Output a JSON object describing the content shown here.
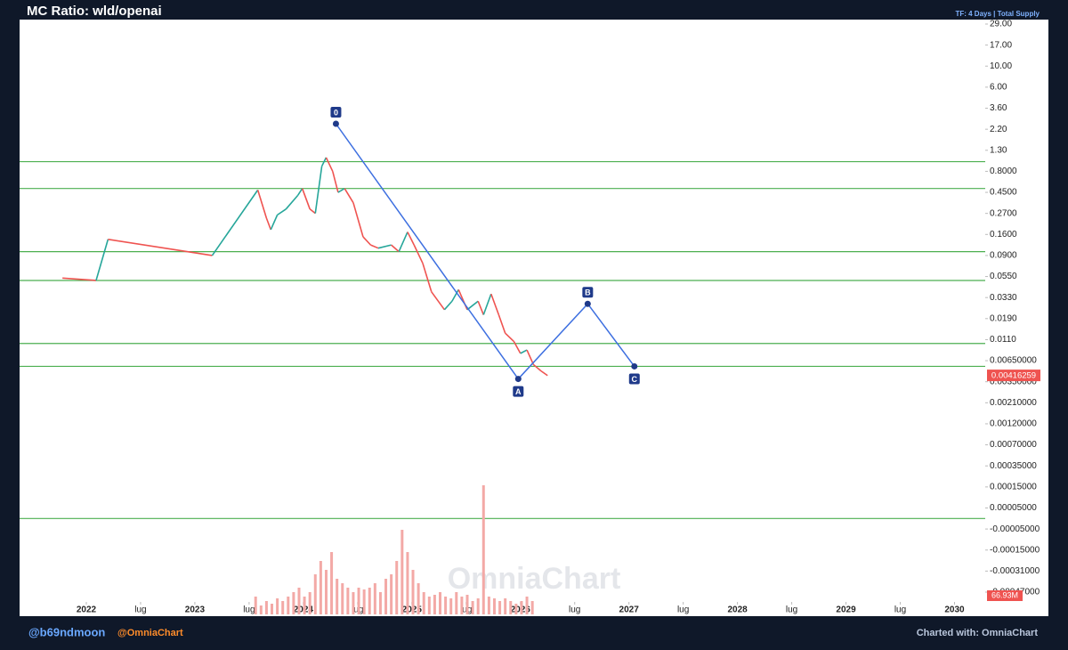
{
  "header": {
    "title": "MC Ratio: wld/openai",
    "settings": "TF: 4 Days | Total Supply"
  },
  "chart_data": {
    "type": "line",
    "x": [
      2021.78,
      2022.09,
      2022.2,
      2023.16,
      2023.58,
      2023.66,
      2023.7,
      2023.76,
      2023.84,
      2023.95,
      2023.99,
      2024.06,
      2024.11,
      2024.17,
      2024.21,
      2024.27,
      2024.32,
      2024.38,
      2024.46,
      2024.55,
      2024.62,
      2024.69,
      2024.81,
      2024.88,
      2024.96,
      2025.02,
      2025.1,
      2025.18,
      2025.3,
      2025.37,
      2025.43,
      2025.51,
      2025.61,
      2025.66,
      2025.73,
      2025.8,
      2025.86,
      2025.94,
      2026.0,
      2026.06,
      2026.12,
      2026.19,
      2026.25
    ],
    "values": [
      0.053,
      0.05,
      0.14,
      0.09,
      0.48,
      0.24,
      0.18,
      0.26,
      0.3,
      0.42,
      0.5,
      0.3,
      0.27,
      0.9,
      1.1,
      0.8,
      0.45,
      0.5,
      0.35,
      0.15,
      0.12,
      0.11,
      0.12,
      0.1,
      0.17,
      0.12,
      0.075,
      0.038,
      0.024,
      0.03,
      0.04,
      0.024,
      0.03,
      0.021,
      0.036,
      0.021,
      0.013,
      0.0105,
      0.0078,
      0.0085,
      0.0058,
      0.0048,
      0.0042
    ],
    "up_color": "#26a69a",
    "down_color": "#ef5350",
    "xlim": [
      2021.385,
      2030.283
    ],
    "xticks": [
      2022,
      {
        "value": 2022.5,
        "label": "lug"
      },
      2023,
      {
        "value": 2023.5,
        "label": "lug"
      },
      2024,
      {
        "value": 2024.5,
        "label": "lug"
      },
      2025,
      {
        "value": 2025.5,
        "label": "lug"
      },
      2026,
      {
        "value": 2026.5,
        "label": "lug"
      },
      2027,
      {
        "value": 2027.5,
        "label": "lug"
      },
      2028,
      {
        "value": 2028.5,
        "label": "lug"
      },
      2029,
      {
        "value": 2029.5,
        "label": "lug"
      },
      2030
    ],
    "ylim": [
      -0.00047,
      29
    ],
    "yticks": [
      {
        "value": 29,
        "label": "29.00"
      },
      {
        "value": 17,
        "label": "17.00"
      },
      {
        "value": 10,
        "label": "10.00"
      },
      {
        "value": 6,
        "label": "6.00"
      },
      {
        "value": 3.6,
        "label": "3.60"
      },
      {
        "value": 2.2,
        "label": "2.20"
      },
      {
        "value": 1.3,
        "label": "1.30"
      },
      {
        "value": 0.8,
        "label": "0.8000"
      },
      {
        "value": 0.45,
        "label": "0.4500"
      },
      {
        "value": 0.27,
        "label": "0.2700"
      },
      {
        "value": 0.16,
        "label": "0.1600"
      },
      {
        "value": 0.09,
        "label": "0.0900"
      },
      {
        "value": 0.055,
        "label": "0.0550"
      },
      {
        "value": 0.033,
        "label": "0.0330"
      },
      {
        "value": 0.019,
        "label": "0.0190"
      },
      {
        "value": 0.011,
        "label": "0.0110"
      },
      {
        "value": 0.0065,
        "label": "0.00650000"
      },
      {
        "value": 0.0035,
        "label": "0.00350000"
      },
      {
        "value": 0.0021,
        "label": "0.00210000"
      },
      {
        "value": 0.0012,
        "label": "0.00120000"
      },
      {
        "value": 0.0007,
        "label": "0.00070000"
      },
      {
        "value": 0.00035,
        "label": "0.00035000"
      },
      {
        "value": 0.00015,
        "label": "0.00015000"
      },
      {
        "value": 5e-05,
        "label": "0.00005000"
      },
      {
        "value": -5e-05,
        "label": "-0.00005000"
      },
      {
        "value": -0.00015,
        "label": "-0.00015000"
      },
      {
        "value": -0.00031,
        "label": "-0.00031000"
      },
      {
        "value": -0.00047,
        "label": "-0.00047000"
      }
    ],
    "levels": [
      1.0,
      0.5,
      0.1,
      0.05,
      0.01,
      0.0055,
      0
    ],
    "level_color": "#4caf50",
    "last_value": 0.00416259,
    "last_color": "#ef5350",
    "wave": {
      "color": "#3d6fe0",
      "label_color": "#1f3a8a",
      "points": [
        {
          "label": "0",
          "x": 2024.3,
          "y": 2.5
        },
        {
          "label": "A",
          "x": 2025.98,
          "y": 0.0038
        },
        {
          "label": "B",
          "x": 2026.62,
          "y": 0.028
        },
        {
          "label": "C",
          "x": 2027.05,
          "y": 0.0055
        }
      ]
    },
    "volume": {
      "color": "#f3a9a6",
      "last_label": "66.93M",
      "ylim": [
        0,
        1500
      ],
      "x": [
        2023.56,
        2023.61,
        2023.66,
        2023.71,
        2023.76,
        2023.81,
        2023.86,
        2023.91,
        2023.96,
        2024.01,
        2024.06,
        2024.11,
        2024.16,
        2024.21,
        2024.26,
        2024.31,
        2024.36,
        2024.41,
        2024.46,
        2024.51,
        2024.56,
        2024.61,
        2024.66,
        2024.71,
        2024.76,
        2024.81,
        2024.86,
        2024.91,
        2024.96,
        2025.01,
        2025.06,
        2025.11,
        2025.16,
        2025.21,
        2025.26,
        2025.31,
        2025.36,
        2025.41,
        2025.46,
        2025.51,
        2025.56,
        2025.61,
        2025.66,
        2025.71,
        2025.76,
        2025.81,
        2025.86,
        2025.91,
        2025.96,
        2026.01,
        2026.06,
        2026.11
      ],
      "values": [
        200,
        100,
        150,
        120,
        180,
        150,
        200,
        250,
        300,
        200,
        250,
        450,
        600,
        500,
        700,
        400,
        350,
        300,
        250,
        300,
        280,
        300,
        350,
        250,
        400,
        450,
        600,
        950,
        700,
        500,
        350,
        250,
        200,
        220,
        250,
        200,
        180,
        250,
        200,
        220,
        150,
        180,
        1450,
        200,
        180,
        150,
        180,
        150,
        120,
        150,
        200,
        150
      ]
    },
    "watermark": "OmniaChart"
  },
  "footer": {
    "handle": "@b69ndmoon",
    "brand": "@OmniaChart",
    "credit": "Charted with: OmniaChart"
  }
}
